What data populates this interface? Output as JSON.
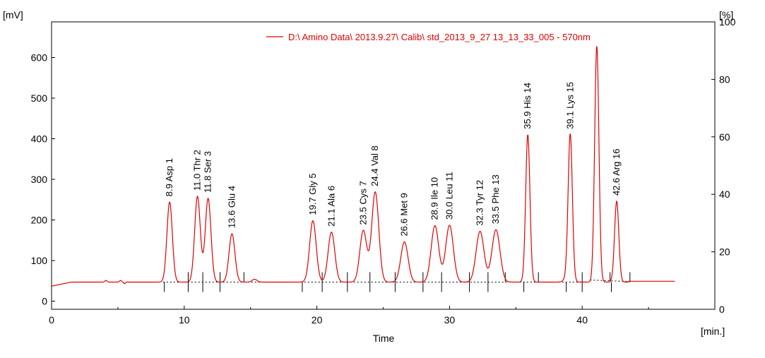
{
  "chart_data": {
    "type": "line",
    "xlabel": "Time",
    "x_unit": "[min.]",
    "y_unit_left": "[mV]",
    "y_unit_right": "[%]",
    "xlim": [
      0,
      50
    ],
    "ylim_left": [
      0,
      700
    ],
    "ylim_right": [
      0,
      100
    ],
    "x_ticks": [
      0,
      10,
      20,
      30,
      40
    ],
    "y_ticks_left": [
      0,
      100,
      200,
      300,
      400,
      500,
      600
    ],
    "y_ticks_right": [
      0,
      20,
      40,
      60,
      80,
      100
    ],
    "grid": false,
    "legend_position": "top-right",
    "series": [
      {
        "name": "D:\\ Amino Data\\ 2013.9.27\\ Calib\\ std_2013_9_27 13_13_33_005 - 570nm",
        "color": "#e00000"
      }
    ],
    "baseline_mV": 47,
    "peaks": [
      {
        "label": "8.9 Asp  1",
        "rt": 8.9,
        "height": 244,
        "start": 8.5,
        "end": 10.3
      },
      {
        "label": "11.0 Thr  2",
        "rt": 11.0,
        "height": 258,
        "start": 10.3,
        "end": 11.4
      },
      {
        "label": "11.8 Ser  3",
        "rt": 11.8,
        "height": 253,
        "start": 11.4,
        "end": 12.7
      },
      {
        "label": "13.6 Glu  4",
        "rt": 13.6,
        "height": 166,
        "start": 12.7,
        "end": 14.5
      },
      {
        "label": "19.7 Gly  5",
        "rt": 19.7,
        "height": 198,
        "start": 18.9,
        "end": 20.4
      },
      {
        "label": "21.1 Ala  6",
        "rt": 21.1,
        "height": 170,
        "start": 20.4,
        "end": 22.3
      },
      {
        "label": "23.5 Cys  7",
        "rt": 23.5,
        "height": 174,
        "start": 22.3,
        "end": 24.0
      },
      {
        "label": "24.4 Val  8",
        "rt": 24.4,
        "height": 269,
        "start": 24.0,
        "end": 25.9
      },
      {
        "label": "26.6 Met  9",
        "rt": 26.6,
        "height": 146,
        "start": 25.9,
        "end": 28.0
      },
      {
        "label": "28.9 Ile  10",
        "rt": 28.9,
        "height": 186,
        "start": 28.0,
        "end": 29.4
      },
      {
        "label": "30.0 Leu  11",
        "rt": 30.0,
        "height": 187,
        "start": 29.4,
        "end": 31.5
      },
      {
        "label": "32.3 Tyr  12",
        "rt": 32.3,
        "height": 172,
        "start": 31.5,
        "end": 32.9
      },
      {
        "label": "33.5 Phe  13",
        "rt": 33.5,
        "height": 176,
        "start": 32.9,
        "end": 34.2
      },
      {
        "label": "35.9 His  14",
        "rt": 35.9,
        "height": 410,
        "start": 35.6,
        "end": 36.7
      },
      {
        "label": "39.1 Lys  15",
        "rt": 39.1,
        "height": 410,
        "start": 38.8,
        "end": 40.0
      },
      {
        "label": "",
        "rt": 41.1,
        "height": 628,
        "start": 40.0,
        "end": 42.1
      },
      {
        "label": "42.6 Arg  16",
        "rt": 42.6,
        "height": 246,
        "start": 42.2,
        "end": 43.6
      }
    ]
  }
}
